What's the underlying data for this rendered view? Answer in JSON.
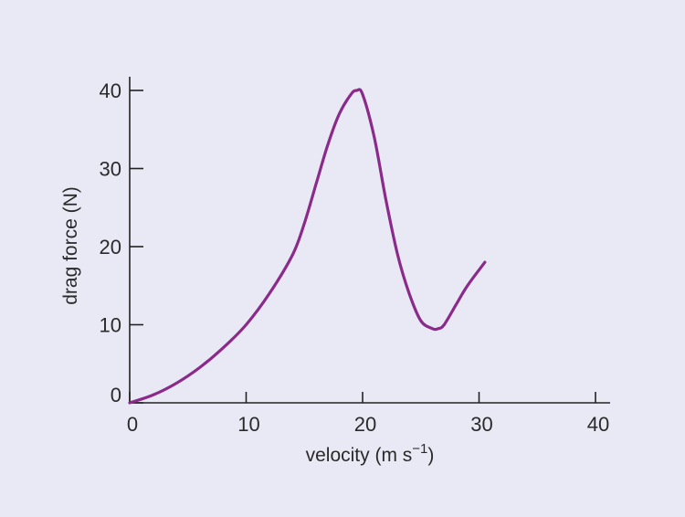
{
  "chart_data": {
    "type": "line",
    "xlabel": "velocity (m s",
    "xlabel_superscript": "−1",
    "xlabel_suffix": ")",
    "ylabel": "drag force (N)",
    "xlim": [
      0,
      40
    ],
    "ylim": [
      0,
      40
    ],
    "x_ticks": [
      0,
      10,
      20,
      30,
      40
    ],
    "y_ticks": [
      0,
      10,
      20,
      30,
      40
    ],
    "x_tick_labels": [
      "0",
      "10",
      "20",
      "30",
      "40"
    ],
    "y_tick_labels": [
      "0",
      "10",
      "20",
      "30",
      "40"
    ],
    "grid": false,
    "colors": {
      "line": "#8a2a8a",
      "axis": "#222222",
      "background": "#e9e9f5"
    },
    "series": [
      {
        "x": [
          0,
          2,
          4,
          6,
          8,
          10,
          12,
          14,
          15,
          16,
          17,
          18,
          19,
          19.5,
          20,
          21,
          22,
          23,
          24,
          25,
          26,
          26.5,
          27,
          28,
          29,
          30.5
        ],
        "y": [
          0,
          1,
          2.5,
          4.5,
          7,
          10,
          14,
          19,
          23,
          28,
          33,
          37,
          39.5,
          40,
          39.5,
          34,
          26,
          19,
          14,
          10.5,
          9.5,
          9.5,
          10,
          12.5,
          15,
          18
        ]
      }
    ]
  }
}
